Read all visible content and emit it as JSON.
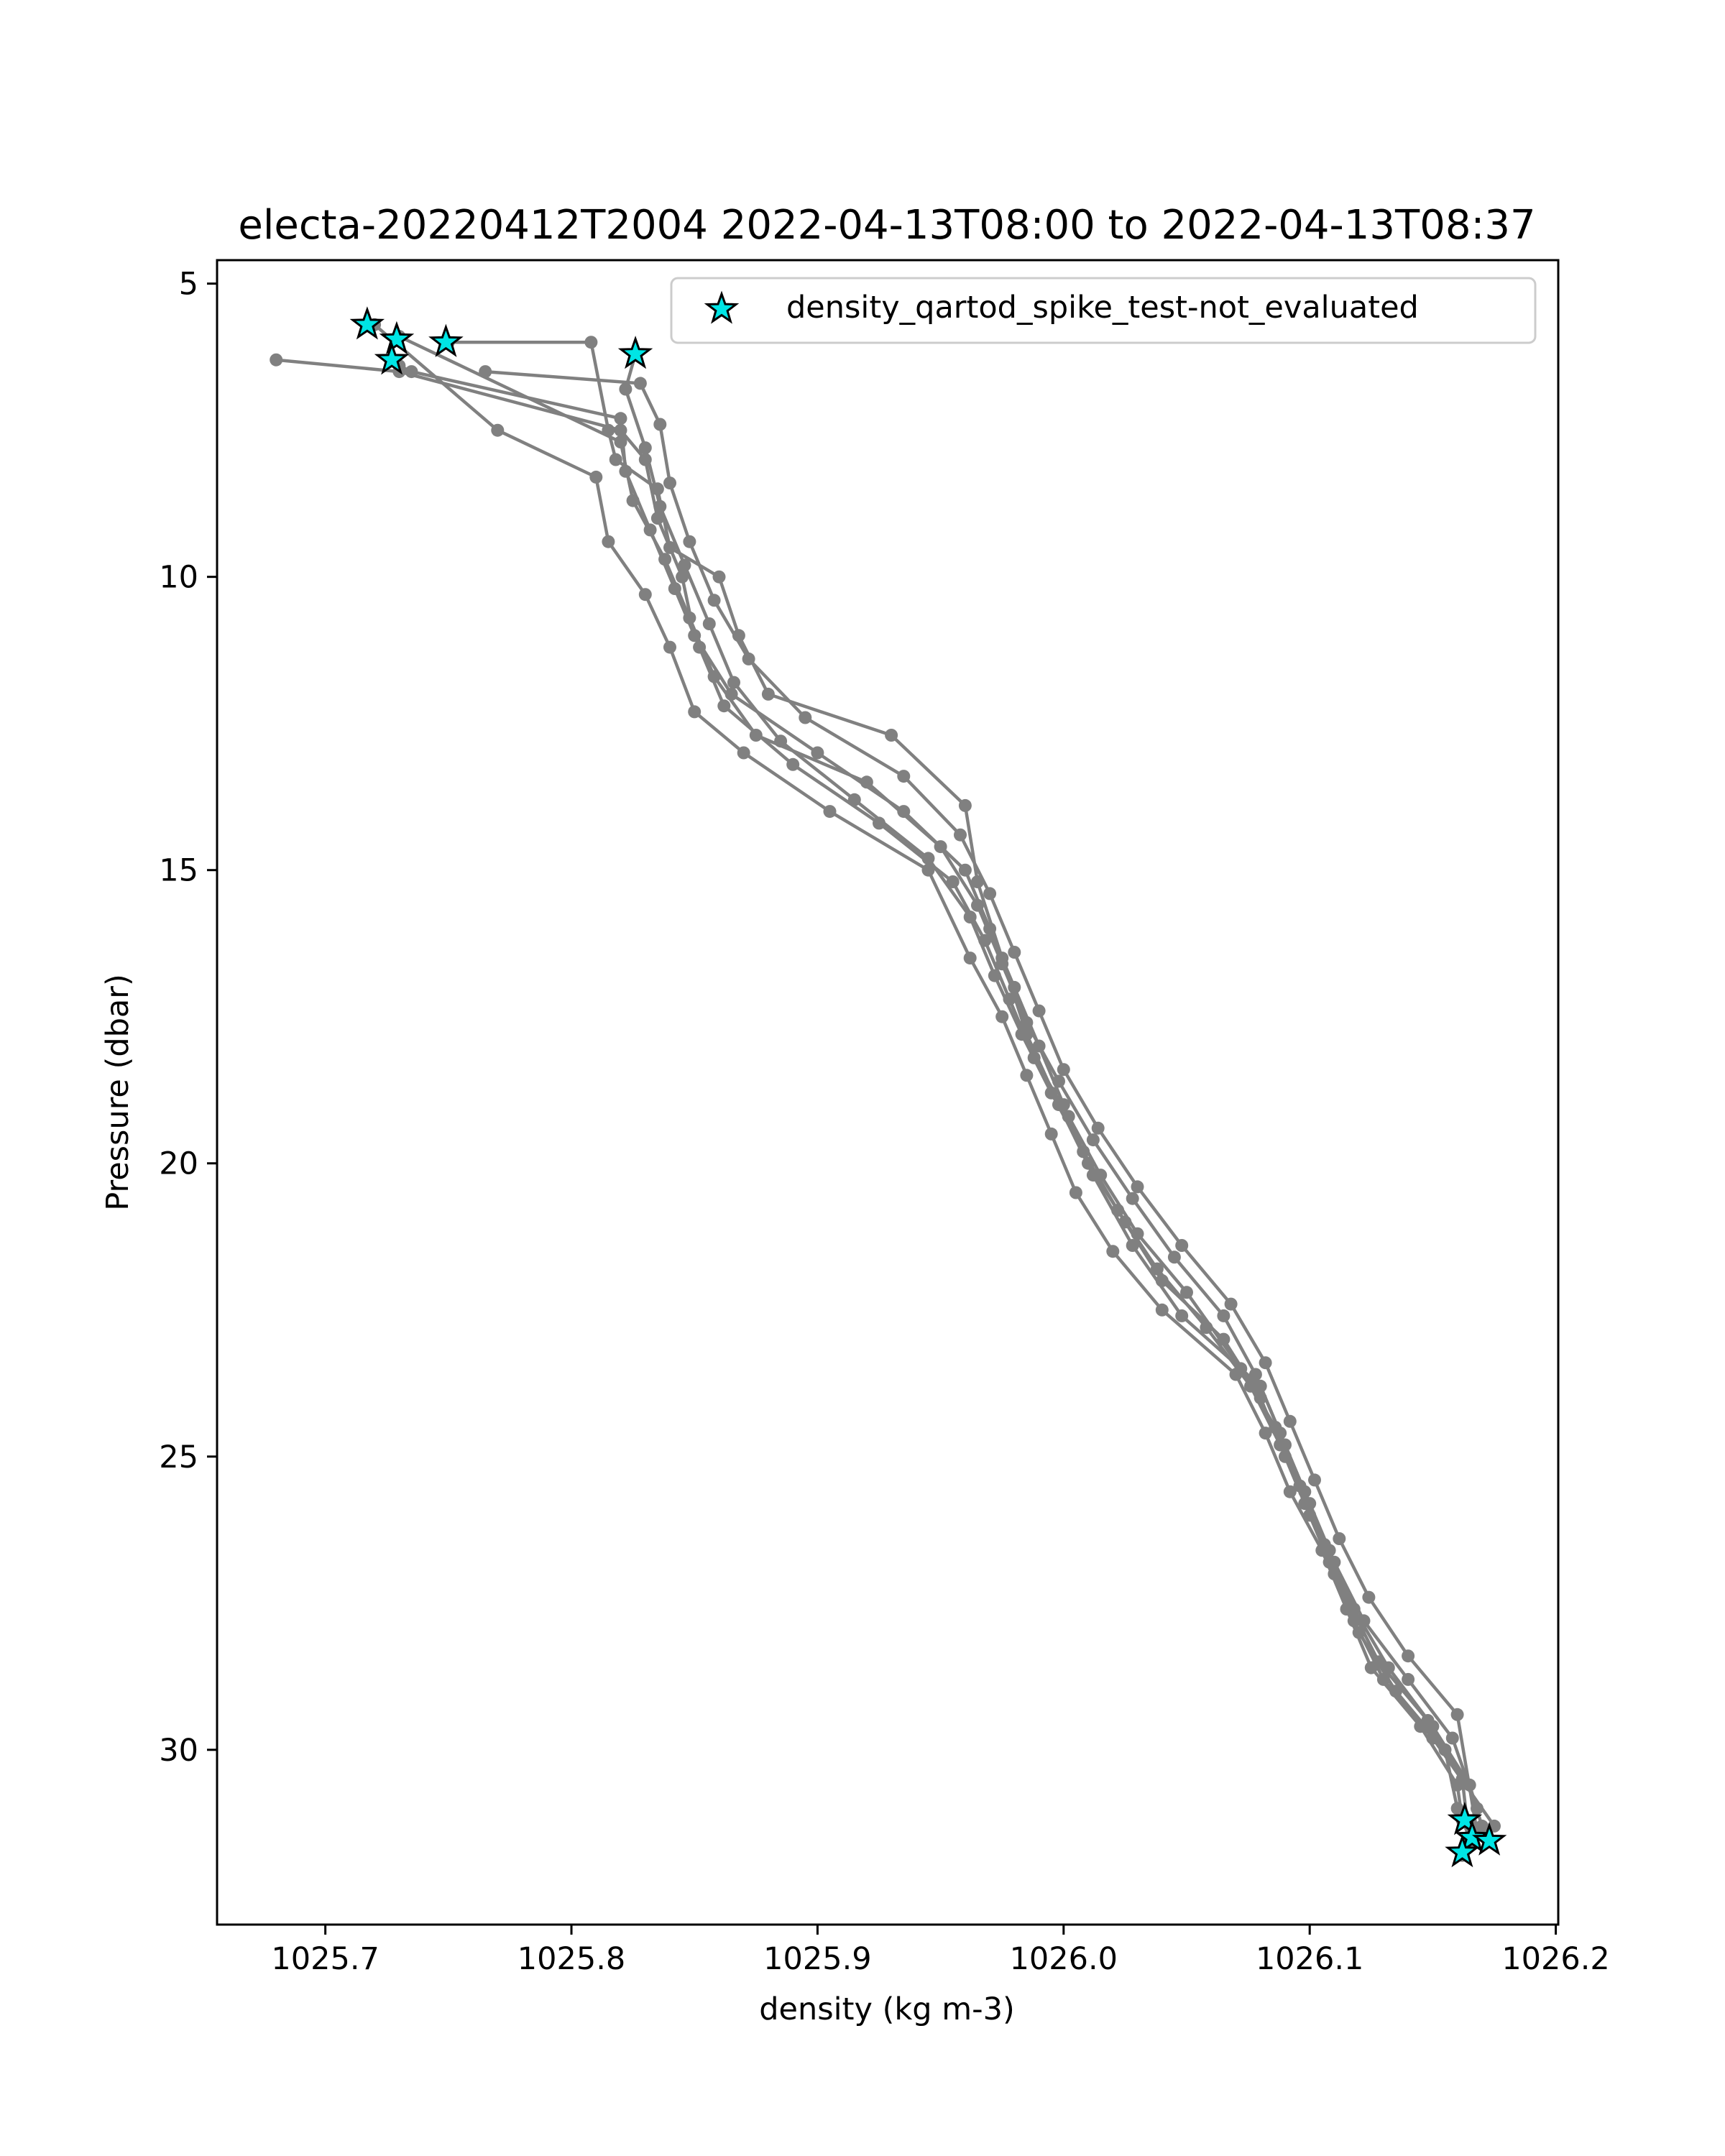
{
  "chart_data": {
    "type": "line",
    "title": "electa-20220412T2004 2022-04-13T08:00 to 2022-04-13T08:37",
    "xlabel": "density (kg m-3)",
    "ylabel": "Pressure (dbar)",
    "xlim": [
      1025.656,
      1026.201
    ],
    "ylim": [
      32.98,
      4.6
    ],
    "y_inverted": true,
    "x_ticks": [
      1025.7,
      1025.8,
      1025.9,
      1026.0,
      1026.1,
      1026.2
    ],
    "x_tick_labels": [
      "1025.7",
      "1025.8",
      "1025.9",
      "1026.0",
      "1026.1",
      "1026.2"
    ],
    "y_ticks": [
      5,
      10,
      15,
      20,
      25,
      30
    ],
    "y_tick_labels": [
      "5",
      "10",
      "15",
      "20",
      "25",
      "30"
    ],
    "grid": false,
    "legend_position": "top-right",
    "colors": {
      "profile": "#808080",
      "flag_fill": "#00e5e5",
      "flag_edge": "#000000"
    },
    "legend": [
      {
        "label": "density_qartod_spike_test-not_evaluated",
        "marker": "star"
      }
    ],
    "series": [
      {
        "points": [
          [
            1025.68,
            6.3
          ],
          [
            1025.73,
            6.5
          ],
          [
            1025.82,
            7.5
          ],
          [
            1025.83,
            8.0
          ],
          [
            1025.835,
            9.0
          ],
          [
            1025.845,
            10.0
          ],
          [
            1025.85,
            11.0
          ],
          [
            1025.865,
            12.0
          ],
          [
            1025.9,
            13.0
          ],
          [
            1025.935,
            14.0
          ],
          [
            1025.96,
            15.0
          ],
          [
            1025.97,
            16.0
          ],
          [
            1025.98,
            17.0
          ],
          [
            1025.99,
            18.0
          ],
          [
            1026.0,
            19.0
          ],
          [
            1026.01,
            20.0
          ],
          [
            1026.025,
            21.0
          ],
          [
            1026.04,
            22.0
          ],
          [
            1026.065,
            23.0
          ],
          [
            1026.08,
            24.0
          ],
          [
            1026.09,
            25.0
          ],
          [
            1026.1,
            26.0
          ],
          [
            1026.11,
            27.0
          ],
          [
            1026.12,
            28.0
          ],
          [
            1026.135,
            29.0
          ],
          [
            1026.155,
            30.0
          ],
          [
            1026.16,
            31.0
          ],
          [
            1026.165,
            31.5
          ]
        ]
      },
      {
        "points": [
          [
            1025.72,
            5.7
          ],
          [
            1025.77,
            7.5
          ],
          [
            1025.81,
            8.3
          ],
          [
            1025.815,
            9.4
          ],
          [
            1025.83,
            10.3
          ],
          [
            1025.84,
            11.2
          ],
          [
            1025.85,
            12.3
          ],
          [
            1025.87,
            13.0
          ],
          [
            1025.905,
            14.0
          ],
          [
            1025.945,
            15.0
          ],
          [
            1025.962,
            16.5
          ],
          [
            1025.975,
            17.5
          ],
          [
            1025.985,
            18.5
          ],
          [
            1025.995,
            19.5
          ],
          [
            1026.005,
            20.5
          ],
          [
            1026.02,
            21.5
          ],
          [
            1026.04,
            22.5
          ],
          [
            1026.07,
            23.6
          ],
          [
            1026.082,
            24.6
          ],
          [
            1026.092,
            25.6
          ],
          [
            1026.105,
            26.6
          ],
          [
            1026.115,
            27.6
          ],
          [
            1026.125,
            28.6
          ],
          [
            1026.145,
            29.6
          ],
          [
            1026.16,
            30.6
          ],
          [
            1026.162,
            31.2
          ]
        ]
      },
      {
        "points": [
          [
            1025.73,
            5.9
          ],
          [
            1025.82,
            7.7
          ],
          [
            1025.825,
            8.7
          ],
          [
            1025.838,
            9.7
          ],
          [
            1025.848,
            10.7
          ],
          [
            1025.858,
            11.7
          ],
          [
            1025.875,
            12.7
          ],
          [
            1025.92,
            13.5
          ],
          [
            1025.95,
            14.6
          ],
          [
            1025.965,
            15.6
          ],
          [
            1025.975,
            16.6
          ],
          [
            1025.985,
            17.6
          ],
          [
            1025.998,
            18.6
          ],
          [
            1026.012,
            19.6
          ],
          [
            1026.028,
            20.6
          ],
          [
            1026.045,
            21.6
          ],
          [
            1026.065,
            22.6
          ],
          [
            1026.078,
            23.6
          ],
          [
            1026.088,
            24.6
          ],
          [
            1026.098,
            25.6
          ],
          [
            1026.108,
            26.6
          ],
          [
            1026.118,
            27.6
          ],
          [
            1026.132,
            28.6
          ],
          [
            1026.15,
            29.6
          ],
          [
            1026.165,
            30.6
          ],
          [
            1026.17,
            31.3
          ]
        ]
      },
      {
        "points": [
          [
            1025.73,
            6.4
          ],
          [
            1025.735,
            6.5
          ],
          [
            1025.82,
            7.3
          ],
          [
            1025.822,
            8.2
          ],
          [
            1025.832,
            9.2
          ],
          [
            1025.842,
            10.2
          ],
          [
            1025.852,
            11.2
          ],
          [
            1025.862,
            12.2
          ],
          [
            1025.89,
            13.2
          ],
          [
            1025.925,
            14.2
          ],
          [
            1025.955,
            15.2
          ],
          [
            1025.968,
            16.2
          ],
          [
            1025.978,
            17.2
          ],
          [
            1025.988,
            18.2
          ],
          [
            1026.002,
            19.2
          ],
          [
            1026.015,
            20.2
          ],
          [
            1026.03,
            21.2
          ],
          [
            1026.05,
            22.2
          ],
          [
            1026.072,
            23.5
          ],
          [
            1026.086,
            24.5
          ],
          [
            1026.096,
            25.5
          ],
          [
            1026.106,
            26.5
          ],
          [
            1026.116,
            27.5
          ],
          [
            1026.128,
            28.5
          ],
          [
            1026.148,
            29.5
          ],
          [
            1026.162,
            30.5
          ],
          [
            1026.165,
            31.6
          ]
        ]
      },
      {
        "points": [
          [
            1025.75,
            6.0
          ],
          [
            1025.808,
            6.0
          ],
          [
            1025.815,
            7.5
          ],
          [
            1025.818,
            8.0
          ],
          [
            1025.835,
            8.5
          ],
          [
            1025.84,
            9.5
          ],
          [
            1025.86,
            10.0
          ],
          [
            1025.868,
            11.0
          ],
          [
            1025.88,
            12.0
          ],
          [
            1025.93,
            12.7
          ],
          [
            1025.96,
            13.9
          ],
          [
            1025.965,
            15.2
          ],
          [
            1025.975,
            16.5
          ],
          [
            1025.985,
            17.8
          ],
          [
            1025.998,
            19.0
          ],
          [
            1026.012,
            20.2
          ],
          [
            1026.028,
            21.4
          ],
          [
            1026.048,
            22.6
          ],
          [
            1026.08,
            23.8
          ],
          [
            1026.09,
            24.8
          ],
          [
            1026.1,
            25.8
          ],
          [
            1026.11,
            26.8
          ],
          [
            1026.122,
            27.8
          ],
          [
            1026.14,
            28.8
          ],
          [
            1026.158,
            29.8
          ],
          [
            1026.168,
            31.0
          ],
          [
            1026.162,
            31.8
          ]
        ]
      },
      {
        "points": [
          [
            1025.826,
            6.2
          ],
          [
            1025.822,
            6.8
          ],
          [
            1025.83,
            7.8
          ],
          [
            1025.836,
            8.8
          ],
          [
            1025.846,
            9.8
          ],
          [
            1025.856,
            10.8
          ],
          [
            1025.866,
            11.8
          ],
          [
            1025.885,
            12.8
          ],
          [
            1025.915,
            13.8
          ],
          [
            1025.945,
            14.8
          ],
          [
            1025.962,
            15.8
          ],
          [
            1025.972,
            16.8
          ],
          [
            1025.983,
            17.8
          ],
          [
            1025.995,
            18.8
          ],
          [
            1026.008,
            19.8
          ],
          [
            1026.022,
            20.8
          ],
          [
            1026.038,
            21.8
          ],
          [
            1026.058,
            22.8
          ],
          [
            1026.076,
            23.8
          ],
          [
            1026.088,
            24.8
          ],
          [
            1026.098,
            25.8
          ],
          [
            1026.108,
            26.8
          ],
          [
            1026.118,
            27.8
          ],
          [
            1026.13,
            28.8
          ],
          [
            1026.15,
            29.8
          ],
          [
            1026.175,
            31.3
          ],
          [
            1026.172,
            31.5
          ]
        ]
      },
      {
        "points": [
          [
            1025.765,
            6.5
          ],
          [
            1025.828,
            6.7
          ],
          [
            1025.836,
            7.4
          ],
          [
            1025.84,
            8.4
          ],
          [
            1025.848,
            9.4
          ],
          [
            1025.858,
            10.4
          ],
          [
            1025.872,
            11.4
          ],
          [
            1025.895,
            12.4
          ],
          [
            1025.935,
            13.4
          ],
          [
            1025.958,
            14.4
          ],
          [
            1025.97,
            15.4
          ],
          [
            1025.98,
            16.4
          ],
          [
            1025.99,
            17.4
          ],
          [
            1026.0,
            18.4
          ],
          [
            1026.014,
            19.4
          ],
          [
            1026.03,
            20.4
          ],
          [
            1026.048,
            21.4
          ],
          [
            1026.068,
            22.4
          ],
          [
            1026.082,
            23.4
          ],
          [
            1026.092,
            24.4
          ],
          [
            1026.102,
            25.4
          ],
          [
            1026.112,
            26.4
          ],
          [
            1026.124,
            27.4
          ],
          [
            1026.14,
            28.4
          ],
          [
            1026.16,
            29.4
          ],
          [
            1026.168,
            31.4
          ]
        ]
      }
    ],
    "flagged_points": [
      [
        1025.717,
        5.7
      ],
      [
        1025.729,
        5.95
      ],
      [
        1025.727,
        6.3
      ],
      [
        1025.749,
        6.0
      ],
      [
        1025.826,
        6.2
      ],
      [
        1026.163,
        31.2
      ],
      [
        1026.166,
        31.5
      ],
      [
        1026.173,
        31.55
      ],
      [
        1026.162,
        31.75
      ]
    ]
  }
}
